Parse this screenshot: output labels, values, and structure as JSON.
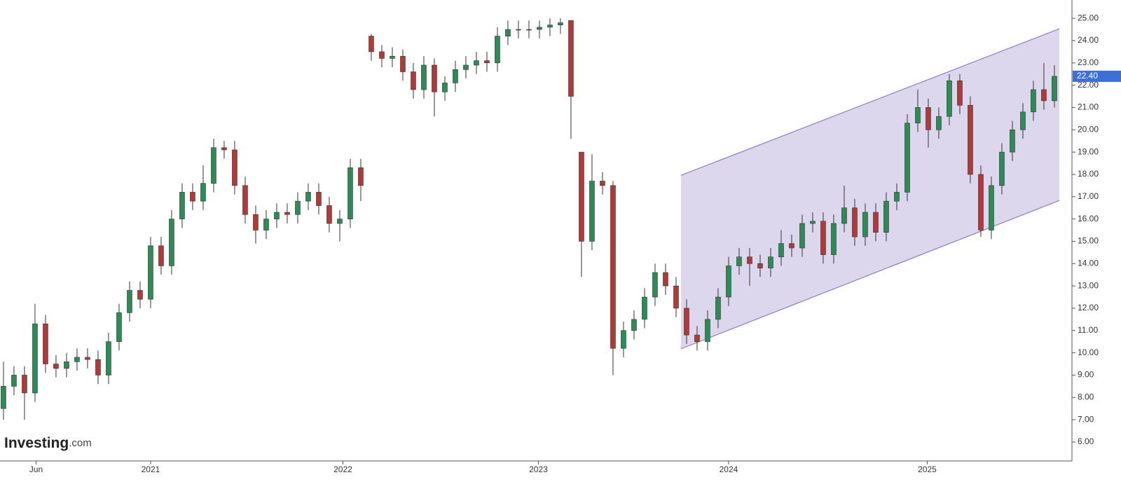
{
  "chart_data": {
    "type": "candlestick",
    "open": [
      7.5,
      8.5,
      9.0,
      8.2,
      11.3,
      9.5,
      9.3,
      9.6,
      9.8,
      9.7,
      9.0,
      10.5,
      11.8,
      12.8,
      12.4,
      14.8,
      13.9,
      16.0,
      17.2,
      16.8,
      17.6,
      19.2,
      19.1,
      17.5,
      16.2,
      15.5,
      16.0,
      16.3,
      16.2,
      16.8,
      17.2,
      16.6,
      15.8,
      16.0,
      18.3,
      24.2,
      23.5,
      23.2,
      23.3,
      22.6,
      21.8,
      22.9,
      21.7,
      22.1,
      22.7,
      22.9,
      23.1,
      23.0,
      24.2,
      24.5,
      24.5,
      24.5,
      24.6,
      24.7,
      24.9,
      19.0,
      15.0,
      17.7,
      17.5,
      10.2,
      11.0,
      11.5,
      12.5,
      13.6,
      13.0,
      12.0,
      10.8,
      10.5,
      11.5,
      12.5,
      13.9,
      14.3,
      14.0,
      13.8,
      14.3,
      14.9,
      14.7,
      15.8,
      15.9,
      14.4,
      15.8,
      16.5,
      15.2,
      16.3,
      15.4,
      16.8,
      17.2,
      20.3,
      21.0,
      20.0,
      20.6,
      22.2,
      21.1,
      18.0,
      15.5,
      17.5,
      19.0,
      20.0,
      20.8,
      21.8,
      21.3
    ],
    "high": [
      9.6,
      9.4,
      9.4,
      12.2,
      11.7,
      9.9,
      10.0,
      10.2,
      10.2,
      10.1,
      10.9,
      12.2,
      13.2,
      13.2,
      15.2,
      15.2,
      16.4,
      17.6,
      17.6,
      18.4,
      19.6,
      19.5,
      19.5,
      17.9,
      16.6,
      16.4,
      16.7,
      16.7,
      17.2,
      17.6,
      17.6,
      17.0,
      16.4,
      18.7,
      18.7,
      24.3,
      23.8,
      23.7,
      23.6,
      23.0,
      23.3,
      23.2,
      22.4,
      23.1,
      23.3,
      23.5,
      23.5,
      24.6,
      24.9,
      24.9,
      24.9,
      24.9,
      25.0,
      25.0,
      24.9,
      19.0,
      18.9,
      18.1,
      17.7,
      11.4,
      11.9,
      12.9,
      14.0,
      14.0,
      13.4,
      12.4,
      11.2,
      11.9,
      12.9,
      14.3,
      14.7,
      14.7,
      14.4,
      14.7,
      15.5,
      15.3,
      16.2,
      16.3,
      16.3,
      16.2,
      17.5,
      16.9,
      16.7,
      16.7,
      17.2,
      17.6,
      20.7,
      21.8,
      21.4,
      21.0,
      22.5,
      22.5,
      21.5,
      18.4,
      17.9,
      19.4,
      20.4,
      21.2,
      22.2,
      23.0,
      22.9
    ],
    "low": [
      7.0,
      8.1,
      7.0,
      7.8,
      9.1,
      8.9,
      8.9,
      9.2,
      9.3,
      8.6,
      8.6,
      10.1,
      11.4,
      12.0,
      12.0,
      13.5,
      13.5,
      15.6,
      16.4,
      16.4,
      17.2,
      18.7,
      17.1,
      15.8,
      14.9,
      15.1,
      15.6,
      15.8,
      15.8,
      16.4,
      16.2,
      15.4,
      15.0,
      15.6,
      16.8,
      23.1,
      22.8,
      22.8,
      22.2,
      21.4,
      21.4,
      20.6,
      21.3,
      21.7,
      22.3,
      22.5,
      22.6,
      22.6,
      23.8,
      24.1,
      24.1,
      24.1,
      24.2,
      24.3,
      19.6,
      13.4,
      14.6,
      17.1,
      9.0,
      9.8,
      10.6,
      11.1,
      12.1,
      12.6,
      11.6,
      10.4,
      10.1,
      10.1,
      11.1,
      12.1,
      13.5,
      13.0,
      13.4,
      13.4,
      13.9,
      14.3,
      14.3,
      15.4,
      14.0,
      14.0,
      15.4,
      14.8,
      14.8,
      15.0,
      15.0,
      16.4,
      16.8,
      19.9,
      19.2,
      19.6,
      20.2,
      20.7,
      17.6,
      15.2,
      15.1,
      17.1,
      18.6,
      19.6,
      20.4,
      20.9,
      21.0
    ],
    "close": [
      8.5,
      9.0,
      8.2,
      11.3,
      9.5,
      9.3,
      9.6,
      9.8,
      9.7,
      9.0,
      10.5,
      11.8,
      12.8,
      12.4,
      14.8,
      13.9,
      16.0,
      17.2,
      16.8,
      17.6,
      19.2,
      19.1,
      17.5,
      16.2,
      15.5,
      16.0,
      16.3,
      16.2,
      16.8,
      17.2,
      16.6,
      15.8,
      16.0,
      18.3,
      17.5,
      23.5,
      23.2,
      23.3,
      22.6,
      21.8,
      22.9,
      21.7,
      22.1,
      22.7,
      22.9,
      23.1,
      23.0,
      24.2,
      24.5,
      24.5,
      24.5,
      24.6,
      24.7,
      24.8,
      21.5,
      15.0,
      17.7,
      17.5,
      10.2,
      11.0,
      11.5,
      12.5,
      13.6,
      13.0,
      12.0,
      10.8,
      10.5,
      11.5,
      12.5,
      13.9,
      14.3,
      14.0,
      13.8,
      14.3,
      14.9,
      14.7,
      15.8,
      15.9,
      14.4,
      15.8,
      16.5,
      15.2,
      16.3,
      15.4,
      16.8,
      17.2,
      20.3,
      21.0,
      20.0,
      20.6,
      22.2,
      21.1,
      18.0,
      15.5,
      17.5,
      19.0,
      20.0,
      20.8,
      21.8,
      21.3,
      22.4
    ],
    "up_color": "#2e8b57",
    "down_color": "#b03a3a",
    "xlim": [
      -0.33,
      101.67
    ],
    "xticks": [
      {
        "value": 3.1,
        "label": "Jun"
      },
      {
        "value": 14.0,
        "label": "2021"
      },
      {
        "value": 32.3,
        "label": "2022"
      },
      {
        "value": 50.9,
        "label": "2023"
      },
      {
        "value": 69.0,
        "label": "2024"
      },
      {
        "value": 87.9,
        "label": "2025"
      }
    ],
    "ylim": [
      5.15,
      25.82
    ],
    "yticks": [
      {
        "value": 6,
        "label": "6.00"
      },
      {
        "value": 7,
        "label": "7.00"
      },
      {
        "value": 8,
        "label": "8.00"
      },
      {
        "value": 9,
        "label": "9.00"
      },
      {
        "value": 10,
        "label": "10.00"
      },
      {
        "value": 11,
        "label": "11.00"
      },
      {
        "value": 12,
        "label": "12.00"
      },
      {
        "value": 13,
        "label": "13.00"
      },
      {
        "value": 14,
        "label": "14.00"
      },
      {
        "value": 15,
        "label": "15.00"
      },
      {
        "value": 16,
        "label": "16.00"
      },
      {
        "value": 17,
        "label": "17.00"
      },
      {
        "value": 18,
        "label": "18.00"
      },
      {
        "value": 19,
        "label": "19.00"
      },
      {
        "value": 20,
        "label": "20.00"
      },
      {
        "value": 21,
        "label": "21.00"
      },
      {
        "value": 22,
        "label": "22.00"
      },
      {
        "value": 23,
        "label": "23.00"
      },
      {
        "value": 24,
        "label": "24.00"
      },
      {
        "value": 25,
        "label": "25.00"
      }
    ],
    "channel": {
      "x": [
        64.47,
        100.47
      ],
      "upper": [
        17.96,
        24.53
      ],
      "lower": [
        10.18,
        16.83
      ],
      "color": "#8e7cc3"
    },
    "last_price": {
      "value": 22.4,
      "label": "22.40",
      "color": "#3d6fd6"
    },
    "logo": {
      "name": "Investing",
      "suffix": ".com"
    }
  }
}
